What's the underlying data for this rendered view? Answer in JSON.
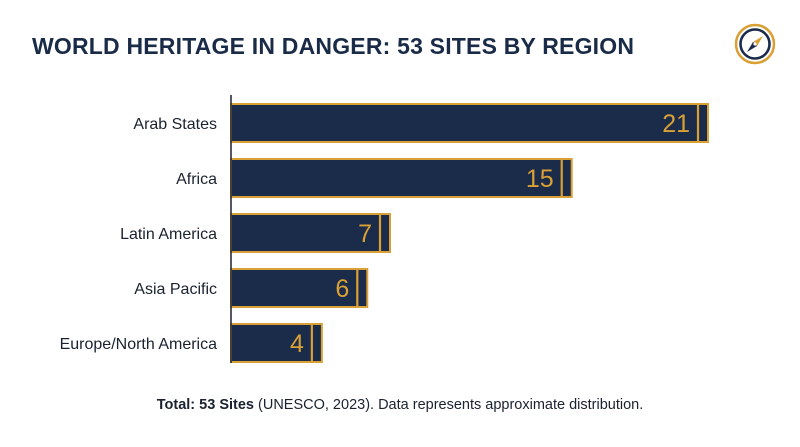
{
  "title": "WORLD HERITAGE IN DANGER: 53 SITES BY REGION",
  "icon": "compass-icon",
  "colors": {
    "title": "#1a2b47",
    "bar_fill": "#1b2b4a",
    "bar_border": "#d9a035",
    "value_label": "#d9a035",
    "category_label": "#1a2230",
    "axis": "#1a2230"
  },
  "chart_data": {
    "type": "bar",
    "orientation": "horizontal",
    "categories": [
      "Arab States",
      "Africa",
      "Latin America",
      "Asia Pacific",
      "Europe/North America"
    ],
    "values": [
      21,
      15,
      7,
      6,
      4
    ],
    "title": "WORLD HERITAGE IN DANGER: 53 SITES BY REGION",
    "xlabel": "",
    "ylabel": "",
    "xlim": [
      0,
      21
    ],
    "grid": false,
    "legend": "none"
  },
  "footnote": {
    "bold": "Total: 53 Sites",
    "rest": " (UNESCO, 2023). Data represents approximate distribution."
  }
}
